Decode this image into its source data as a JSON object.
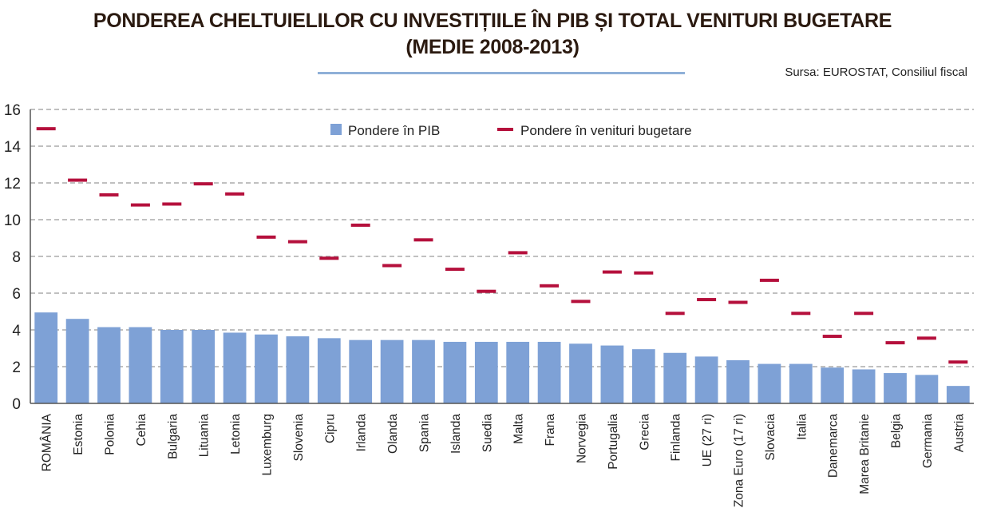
{
  "header": {
    "title_line1": "PONDEREA CHELTUIELILOR CU INVESTIȚIILE ÎN PIB ȘI TOTAL VENITURI BUGETARE",
    "title_line2": "(MEDIE 2008-2013)",
    "source": "Sursa: EUROSTAT, Consiliul fiscal"
  },
  "colors": {
    "bar": "#7ea1d6",
    "marker": "#b5103c",
    "grid": "#9a9a9a",
    "axis": "#555555"
  },
  "chart_data": {
    "type": "bar",
    "title": "PONDEREA CHELTUIELILOR CU INVESTIȚIILE ÎN PIB ȘI TOTAL VENITURI BUGETARE (MEDIE 2008-2013)",
    "xlabel": "",
    "ylabel": "",
    "ylim": [
      0,
      16
    ],
    "yticks": [
      0,
      2,
      4,
      6,
      8,
      10,
      12,
      14,
      16
    ],
    "grid": true,
    "legend_position": "top-center",
    "categories": [
      "ROMÂNIA",
      "Estonia",
      "Polonia",
      "Cehia",
      "Bulgaria",
      "Lituania",
      "Letonia",
      "Luxemburg",
      "Slovenia",
      "Cipru",
      "Irlanda",
      "Olanda",
      "Spania",
      "Islanda",
      "Suedia",
      "Malta",
      "Frana",
      "Norvegia",
      "Portugalia",
      "Grecia",
      "Finlanda",
      "UE (27 ri)",
      "Zona Euro (17 ri)",
      "Slovacia",
      "Italia",
      "Danemarca",
      "Marea Britanie",
      "Belgia",
      "Germania",
      "Austria"
    ],
    "series": [
      {
        "name": "Pondere în PIB",
        "kind": "bar",
        "values": [
          4.95,
          4.6,
          4.15,
          4.15,
          4.0,
          4.0,
          3.85,
          3.75,
          3.65,
          3.55,
          3.45,
          3.45,
          3.45,
          3.35,
          3.35,
          3.35,
          3.35,
          3.25,
          3.15,
          2.95,
          2.75,
          2.55,
          2.35,
          2.15,
          2.15,
          1.95,
          1.85,
          1.65,
          1.55,
          0.95
        ]
      },
      {
        "name": "Pondere în venituri bugetare",
        "kind": "marker",
        "values": [
          14.95,
          12.15,
          11.35,
          10.8,
          10.85,
          11.95,
          11.4,
          9.05,
          8.8,
          7.9,
          9.7,
          7.5,
          8.9,
          7.3,
          6.1,
          8.2,
          6.4,
          5.55,
          7.15,
          7.1,
          4.9,
          5.65,
          5.5,
          6.7,
          4.9,
          3.65,
          4.9,
          3.3,
          3.55,
          2.25
        ]
      }
    ]
  }
}
